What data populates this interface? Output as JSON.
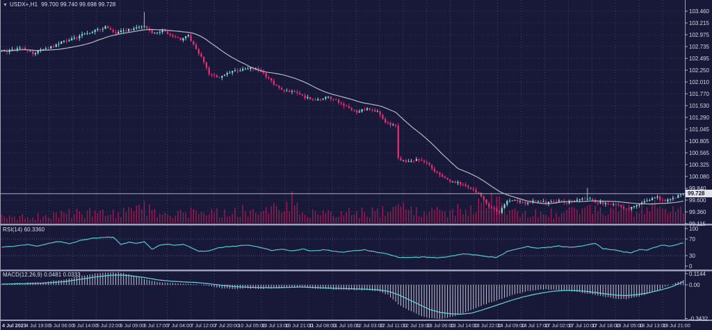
{
  "header": {
    "dropdown_icon": "▼",
    "symbol": "USDX+,H1",
    "ohlc": "99.700 99.740 99.698 99.728"
  },
  "price_axis": {
    "labels": [
      "103.460",
      "103.215",
      "102.975",
      "102.735",
      "102.495",
      "102.250",
      "102.010",
      "101.770",
      "101.530",
      "101.290",
      "101.045",
      "100.805",
      "100.565",
      "100.325",
      "100.080",
      "99.840",
      "99.600",
      "99.360",
      "99.115"
    ],
    "current_price": "99.728"
  },
  "time_axis": {
    "labels": [
      "4 Jul 2023",
      "4 Jul 19:00",
      "5 Jul 06:00",
      "5 Jul 14:00",
      "5 Jul 22:00",
      "6 Jul 09:00",
      "6 Jul 17:00",
      "7 Jul 04:00",
      "7 Jul 12:00",
      "7 Jul 20:00",
      "10 Jul 05:00",
      "10 Jul 13:00",
      "10 Jul 21:00",
      "11 Jul 08:00",
      "11 Jul 16:00",
      "12 Jul 03:00",
      "12 Jul 11:00",
      "12 Jul 19:00",
      "13 Jul 06:00",
      "13 Jul 14:00",
      "13 Jul 22:00",
      "14 Jul 09:00",
      "14 Jul 17:00",
      "17 Jul 02:00",
      "17 Jul 10:00",
      "17 Jul 18:00",
      "18 Jul 05:00",
      "18 Jul 13:00",
      "18 Jul 21:00"
    ]
  },
  "rsi_panel": {
    "label": "RSI(14)",
    "value": "60.3360",
    "scale_labels": [
      "100",
      "70",
      "30",
      "0"
    ]
  },
  "macd_panel": {
    "label": "MACD(12,26,9)",
    "values": "0.0481 0.0333",
    "scale_labels": [
      "0.1144",
      "0.00",
      "-0.3432"
    ]
  },
  "colors": {
    "background": "#181839",
    "bull": "#86e3da",
    "bear": "#ef2e74",
    "ma_line": "#b9b9c2",
    "volume": "#9c1d52",
    "rsi_line": "#56c9d3",
    "macd_line": "#66d9dc",
    "macd_hist": "#c6c6d4",
    "grid": "#6d6d94",
    "axis_text": "#d8d8e2",
    "divider": "#9fa0b6",
    "price_line": "#c4c4ce",
    "price_marker_bg": "#e4e4ea",
    "price_marker_text": "#14142e"
  },
  "chart_data": [
    {
      "type": "candlestick",
      "title": "USDX+ H1",
      "bars": 264,
      "ylim": [
        99.115,
        103.69
      ],
      "last_ohlc": {
        "open": "99.700",
        "high": "99.740",
        "low": "99.698",
        "close": "99.728"
      },
      "ma_period": 24,
      "close_waypoints": [
        [
          0,
          102.63
        ],
        [
          4,
          102.66
        ],
        [
          8,
          102.71
        ],
        [
          12,
          102.6
        ],
        [
          16,
          102.68
        ],
        [
          20,
          102.74
        ],
        [
          24,
          102.85
        ],
        [
          28,
          102.9
        ],
        [
          32,
          103.0
        ],
        [
          36,
          103.06
        ],
        [
          40,
          103.14
        ],
        [
          44,
          103.0
        ],
        [
          47,
          103.06
        ],
        [
          50,
          103.09
        ],
        [
          55,
          103.17
        ],
        [
          58,
          102.99
        ],
        [
          62,
          103.06
        ],
        [
          66,
          102.96
        ],
        [
          69,
          102.88
        ],
        [
          72,
          102.95
        ],
        [
          75,
          102.7
        ],
        [
          78,
          102.42
        ],
        [
          80,
          102.17
        ],
        [
          84,
          102.1
        ],
        [
          88,
          102.2
        ],
        [
          92,
          102.26
        ],
        [
          96,
          102.3
        ],
        [
          100,
          102.24
        ],
        [
          104,
          102.02
        ],
        [
          108,
          101.85
        ],
        [
          113,
          101.8
        ],
        [
          117,
          101.7
        ],
        [
          121,
          101.64
        ],
        [
          125,
          101.7
        ],
        [
          129,
          101.64
        ],
        [
          133,
          101.5
        ],
        [
          137,
          101.4
        ],
        [
          141,
          101.46
        ],
        [
          145,
          101.4
        ],
        [
          148,
          101.18
        ],
        [
          151,
          101.12
        ],
        [
          152,
          101.1
        ],
        [
          153,
          100.45
        ],
        [
          156,
          100.38
        ],
        [
          160,
          100.42
        ],
        [
          164,
          100.35
        ],
        [
          168,
          100.14
        ],
        [
          172,
          100.0
        ],
        [
          176,
          99.95
        ],
        [
          180,
          99.85
        ],
        [
          184,
          99.74
        ],
        [
          187,
          99.52
        ],
        [
          190,
          99.4
        ],
        [
          192,
          99.36
        ],
        [
          195,
          99.56
        ],
        [
          198,
          99.6
        ],
        [
          202,
          99.54
        ],
        [
          206,
          99.58
        ],
        [
          210,
          99.54
        ],
        [
          214,
          99.58
        ],
        [
          218,
          99.55
        ],
        [
          222,
          99.6
        ],
        [
          226,
          99.62
        ],
        [
          230,
          99.55
        ],
        [
          234,
          99.52
        ],
        [
          238,
          99.5
        ],
        [
          241,
          99.42
        ],
        [
          245,
          99.47
        ],
        [
          249,
          99.6
        ],
        [
          253,
          99.65
        ],
        [
          256,
          99.57
        ],
        [
          260,
          99.66
        ],
        [
          263,
          99.728
        ]
      ],
      "wick_events": [
        [
          55,
          0.26,
          1
        ],
        [
          191,
          0.07,
          -1
        ],
        [
          226,
          0.2,
          1
        ]
      ],
      "volume_envelope": [
        [
          0,
          0.25
        ],
        [
          10,
          0.3
        ],
        [
          20,
          0.35
        ],
        [
          25,
          0.55
        ],
        [
          30,
          0.4
        ],
        [
          38,
          0.5
        ],
        [
          44,
          0.45
        ],
        [
          50,
          0.5
        ],
        [
          55,
          0.75
        ],
        [
          60,
          0.4
        ],
        [
          66,
          0.35
        ],
        [
          72,
          0.5
        ],
        [
          78,
          0.65
        ],
        [
          82,
          0.55
        ],
        [
          88,
          0.45
        ],
        [
          94,
          0.6
        ],
        [
          100,
          0.5
        ],
        [
          106,
          0.6
        ],
        [
          110,
          0.95
        ],
        [
          114,
          0.9
        ],
        [
          118,
          0.5
        ],
        [
          124,
          0.4
        ],
        [
          130,
          0.45
        ],
        [
          136,
          0.5
        ],
        [
          142,
          0.45
        ],
        [
          148,
          0.5
        ],
        [
          153,
          0.85
        ],
        [
          158,
          0.5
        ],
        [
          164,
          0.45
        ],
        [
          170,
          0.5
        ],
        [
          176,
          0.55
        ],
        [
          182,
          0.6
        ],
        [
          186,
          0.9
        ],
        [
          190,
          0.95
        ],
        [
          194,
          0.7
        ],
        [
          198,
          0.45
        ],
        [
          204,
          0.4
        ],
        [
          210,
          0.45
        ],
        [
          216,
          0.4
        ],
        [
          222,
          0.5
        ],
        [
          226,
          0.75
        ],
        [
          230,
          0.45
        ],
        [
          236,
          0.5
        ],
        [
          241,
          0.65
        ],
        [
          245,
          0.55
        ],
        [
          249,
          0.8
        ],
        [
          253,
          0.65
        ],
        [
          257,
          0.5
        ],
        [
          260,
          0.55
        ],
        [
          263,
          0.5
        ]
      ]
    },
    {
      "type": "line",
      "name": "RSI(14)",
      "range": [
        0,
        100
      ],
      "levels": [
        30,
        70
      ],
      "last_value": 60.336,
      "waypoints": [
        [
          0,
          50
        ],
        [
          6,
          54
        ],
        [
          10,
          57
        ],
        [
          14,
          53
        ],
        [
          18,
          60
        ],
        [
          22,
          64
        ],
        [
          26,
          59
        ],
        [
          30,
          66
        ],
        [
          34,
          71
        ],
        [
          40,
          74
        ],
        [
          43,
          74
        ],
        [
          46,
          57
        ],
        [
          49,
          62
        ],
        [
          52,
          60
        ],
        [
          55,
          63
        ],
        [
          58,
          46
        ],
        [
          61,
          55
        ],
        [
          64,
          58
        ],
        [
          67,
          55
        ],
        [
          70,
          57
        ],
        [
          73,
          50
        ],
        [
          76,
          40
        ],
        [
          80,
          42
        ],
        [
          84,
          49
        ],
        [
          88,
          52
        ],
        [
          92,
          54
        ],
        [
          96,
          55
        ],
        [
          100,
          49
        ],
        [
          104,
          43
        ],
        [
          108,
          45
        ],
        [
          112,
          42
        ],
        [
          116,
          46
        ],
        [
          120,
          41
        ],
        [
          124,
          44
        ],
        [
          128,
          41
        ],
        [
          132,
          38
        ],
        [
          136,
          42
        ],
        [
          140,
          44
        ],
        [
          144,
          39
        ],
        [
          148,
          36
        ],
        [
          153,
          26
        ],
        [
          158,
          25
        ],
        [
          163,
          27
        ],
        [
          168,
          25
        ],
        [
          173,
          28
        ],
        [
          178,
          34
        ],
        [
          183,
          32
        ],
        [
          187,
          28
        ],
        [
          191,
          26
        ],
        [
          195,
          40
        ],
        [
          199,
          47
        ],
        [
          203,
          52
        ],
        [
          207,
          48
        ],
        [
          211,
          50
        ],
        [
          215,
          53
        ],
        [
          219,
          50
        ],
        [
          223,
          52
        ],
        [
          229,
          60
        ],
        [
          232,
          47
        ],
        [
          236,
          44
        ],
        [
          240,
          39
        ],
        [
          243,
          37
        ],
        [
          246,
          45
        ],
        [
          249,
          43
        ],
        [
          252,
          50
        ],
        [
          255,
          55
        ],
        [
          258,
          53
        ],
        [
          261,
          58
        ],
        [
          263,
          60.34
        ]
      ]
    },
    {
      "type": "macd",
      "name": "MACD(12,26,9)",
      "ylim": [
        -0.3432,
        0.1144
      ],
      "last_main": 0.0481,
      "last_signal": 0.0333,
      "main_waypoints": [
        [
          0,
          0.006
        ],
        [
          8,
          0.018
        ],
        [
          16,
          0.028
        ],
        [
          24,
          0.055
        ],
        [
          30,
          0.09
        ],
        [
          36,
          0.115
        ],
        [
          42,
          0.13
        ],
        [
          46,
          0.125
        ],
        [
          50,
          0.1
        ],
        [
          55,
          0.06
        ],
        [
          60,
          0.03
        ],
        [
          65,
          0.018
        ],
        [
          70,
          0.012
        ],
        [
          75,
          0.006
        ],
        [
          80,
          -0.01
        ],
        [
          85,
          -0.035
        ],
        [
          90,
          -0.045
        ],
        [
          95,
          -0.035
        ],
        [
          100,
          -0.04
        ],
        [
          105,
          -0.035
        ],
        [
          110,
          -0.03
        ],
        [
          115,
          -0.028
        ],
        [
          120,
          -0.035
        ],
        [
          125,
          -0.042
        ],
        [
          130,
          -0.05
        ],
        [
          135,
          -0.052
        ],
        [
          140,
          -0.055
        ],
        [
          145,
          -0.065
        ],
        [
          149,
          -0.1
        ],
        [
          153,
          -0.2
        ],
        [
          157,
          -0.26
        ],
        [
          161,
          -0.31
        ],
        [
          165,
          -0.34
        ],
        [
          169,
          -0.35
        ],
        [
          173,
          -0.33
        ],
        [
          177,
          -0.3
        ],
        [
          181,
          -0.26
        ],
        [
          185,
          -0.215
        ],
        [
          189,
          -0.175
        ],
        [
          193,
          -0.14
        ],
        [
          197,
          -0.105
        ],
        [
          201,
          -0.075
        ],
        [
          205,
          -0.055
        ],
        [
          209,
          -0.045
        ],
        [
          213,
          -0.05
        ],
        [
          217,
          -0.06
        ],
        [
          221,
          -0.07
        ],
        [
          225,
          -0.085
        ],
        [
          229,
          -0.105
        ],
        [
          233,
          -0.125
        ],
        [
          237,
          -0.14
        ],
        [
          241,
          -0.145
        ],
        [
          245,
          -0.125
        ],
        [
          249,
          -0.095
        ],
        [
          253,
          -0.055
        ],
        [
          256,
          -0.02
        ],
        [
          259,
          0.01
        ],
        [
          261,
          0.03
        ],
        [
          263,
          0.048
        ]
      ],
      "signal_waypoints": [
        [
          0,
          0.008
        ],
        [
          8,
          0.012
        ],
        [
          16,
          0.018
        ],
        [
          24,
          0.032
        ],
        [
          30,
          0.055
        ],
        [
          36,
          0.08
        ],
        [
          42,
          0.098
        ],
        [
          46,
          0.1
        ],
        [
          50,
          0.092
        ],
        [
          55,
          0.075
        ],
        [
          60,
          0.052
        ],
        [
          65,
          0.038
        ],
        [
          70,
          0.03
        ],
        [
          75,
          0.024
        ],
        [
          80,
          0.012
        ],
        [
          85,
          -0.005
        ],
        [
          90,
          -0.018
        ],
        [
          95,
          -0.024
        ],
        [
          100,
          -0.028
        ],
        [
          105,
          -0.03
        ],
        [
          110,
          -0.026
        ],
        [
          115,
          -0.022
        ],
        [
          120,
          -0.026
        ],
        [
          125,
          -0.032
        ],
        [
          130,
          -0.036
        ],
        [
          135,
          -0.04
        ],
        [
          140,
          -0.044
        ],
        [
          145,
          -0.05
        ],
        [
          149,
          -0.065
        ],
        [
          153,
          -0.1
        ],
        [
          157,
          -0.15
        ],
        [
          161,
          -0.2
        ],
        [
          165,
          -0.25
        ],
        [
          169,
          -0.28
        ],
        [
          173,
          -0.295
        ],
        [
          177,
          -0.3
        ],
        [
          181,
          -0.29
        ],
        [
          185,
          -0.26
        ],
        [
          189,
          -0.225
        ],
        [
          193,
          -0.19
        ],
        [
          197,
          -0.155
        ],
        [
          201,
          -0.125
        ],
        [
          205,
          -0.1
        ],
        [
          209,
          -0.08
        ],
        [
          213,
          -0.065
        ],
        [
          217,
          -0.058
        ],
        [
          221,
          -0.058
        ],
        [
          225,
          -0.065
        ],
        [
          229,
          -0.078
        ],
        [
          233,
          -0.092
        ],
        [
          237,
          -0.105
        ],
        [
          241,
          -0.11
        ],
        [
          245,
          -0.1
        ],
        [
          249,
          -0.085
        ],
        [
          253,
          -0.06
        ],
        [
          256,
          -0.04
        ],
        [
          259,
          -0.015
        ],
        [
          261,
          0.01
        ],
        [
          263,
          0.033
        ]
      ]
    }
  ]
}
